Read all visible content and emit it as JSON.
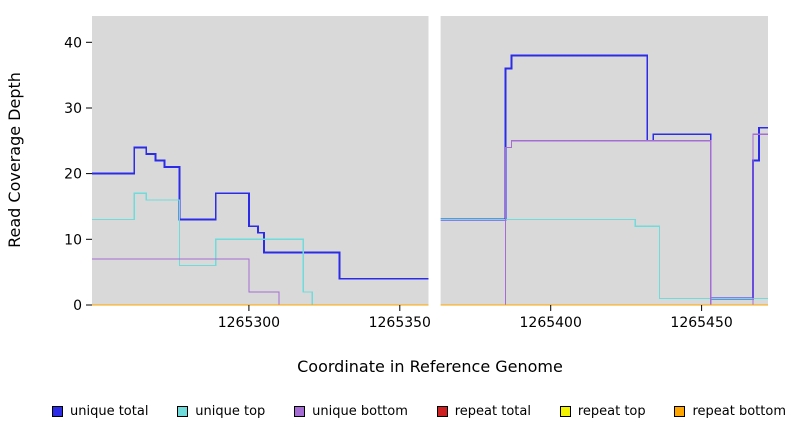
{
  "chart_data": {
    "type": "line",
    "title": "",
    "xlabel": "Coordinate in Reference Genome",
    "ylabel": "Read Coverage Depth",
    "x_domain": [
      1265248,
      1265472
    ],
    "y_domain": [
      0,
      44
    ],
    "x_ticks": [
      1265300,
      1265350,
      1265400,
      1265450
    ],
    "y_ticks": [
      0,
      10,
      20,
      30,
      40
    ],
    "gap_region": [
      1265359.5,
      1265363.5
    ],
    "plot_bg": "#D9D9D9",
    "grid": "off",
    "legend_position": "bottom",
    "series": [
      {
        "name": "unique total",
        "color": "#2B2BE8",
        "width": 1.8,
        "points": [
          [
            1265248,
            20
          ],
          [
            1265262,
            24
          ],
          [
            1265266,
            23
          ],
          [
            1265269,
            22
          ],
          [
            1265272,
            21
          ],
          [
            1265277,
            13
          ],
          [
            1265289,
            17
          ],
          [
            1265300,
            12
          ],
          [
            1265303,
            11
          ],
          [
            1265305,
            8
          ],
          [
            1265330,
            4
          ],
          [
            1265361,
            13
          ],
          [
            1265385,
            36
          ],
          [
            1265387,
            38
          ],
          [
            1265432,
            25
          ],
          [
            1265434,
            26
          ],
          [
            1265453,
            1
          ],
          [
            1265467,
            22
          ],
          [
            1265469,
            27
          ],
          [
            1265472,
            27
          ]
        ]
      },
      {
        "name": "unique top",
        "color": "#6FDBDB",
        "width": 1.2,
        "points": [
          [
            1265248,
            13
          ],
          [
            1265262,
            17
          ],
          [
            1265266,
            16
          ],
          [
            1265277,
            6
          ],
          [
            1265289,
            10
          ],
          [
            1265318,
            2
          ],
          [
            1265321,
            0
          ],
          [
            1265361,
            13
          ],
          [
            1265428,
            12
          ],
          [
            1265436,
            1
          ],
          [
            1265472,
            1
          ]
        ]
      },
      {
        "name": "unique bottom",
        "color": "#A56DD4",
        "width": 1.2,
        "points": [
          [
            1265248,
            7
          ],
          [
            1265300,
            2
          ],
          [
            1265310,
            0
          ],
          [
            1265361,
            0
          ],
          [
            1265385,
            24
          ],
          [
            1265387,
            25
          ],
          [
            1265453,
            0
          ],
          [
            1265467,
            26
          ],
          [
            1265472,
            26
          ]
        ]
      },
      {
        "name": "repeat total",
        "color": "#CE2020",
        "width": 1.2,
        "points": [
          [
            1265248,
            0
          ],
          [
            1265472,
            0
          ]
        ]
      },
      {
        "name": "repeat top",
        "color": "#F2F200",
        "width": 1.2,
        "points": [
          [
            1265248,
            0
          ],
          [
            1265472,
            0
          ]
        ]
      },
      {
        "name": "repeat bottom",
        "color": "#FFA500",
        "width": 1.2,
        "points": [
          [
            1265248,
            0
          ],
          [
            1265472,
            0
          ]
        ]
      }
    ],
    "legend": [
      {
        "label": "unique total",
        "color": "#2B2BE8"
      },
      {
        "label": "unique top",
        "color": "#6FDBDB"
      },
      {
        "label": "unique bottom",
        "color": "#A56DD4"
      },
      {
        "label": "repeat total",
        "color": "#CE2020"
      },
      {
        "label": "repeat top",
        "color": "#F2F200"
      },
      {
        "label": "repeat bottom",
        "color": "#FFA500"
      }
    ]
  }
}
